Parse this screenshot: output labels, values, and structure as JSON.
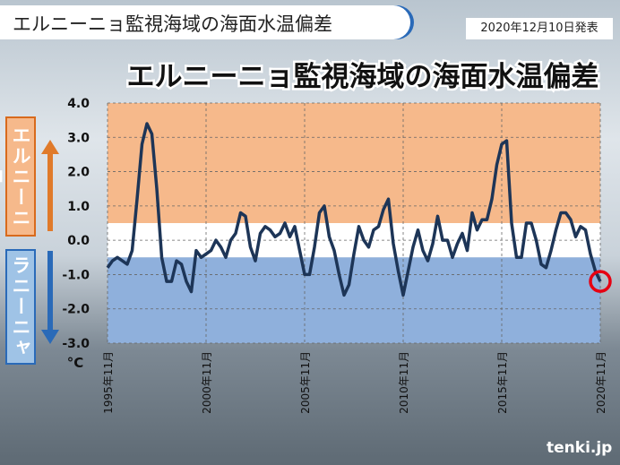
{
  "header": {
    "title": "エルニーニョ監視海域の海面水温偏差",
    "date": "2020年12月10日発表"
  },
  "side_labels": {
    "el_nino": "エルニーニョ",
    "la_nina": "ラニーニャ"
  },
  "logo": "tenki.jp",
  "chart_data": {
    "type": "line",
    "title": "エルニーニョ監視海域の海面水温偏差",
    "y_unit": "°C",
    "xlim": [
      "1995-11",
      "2020-11"
    ],
    "xticks": [
      {
        "value": "1995-11",
        "label": "1995年11月"
      },
      {
        "value": "2000-11",
        "label": "2000年11月"
      },
      {
        "value": "2005-11",
        "label": "2005年11月"
      },
      {
        "value": "2010-11",
        "label": "2010年11月"
      },
      {
        "value": "2015-11",
        "label": "2015年11月"
      },
      {
        "value": "2020-11",
        "label": "2020年11月"
      }
    ],
    "ylim": [
      -3,
      4
    ],
    "yticks": [
      {
        "value": 4,
        "label": "4.0"
      },
      {
        "value": 3,
        "label": "3.0"
      },
      {
        "value": 2,
        "label": "2.0"
      },
      {
        "value": 1,
        "label": "1.0"
      },
      {
        "value": 0,
        "label": "0.0"
      },
      {
        "value": -1,
        "label": "-1.0"
      },
      {
        "value": -2,
        "label": "-2.0"
      },
      {
        "value": -3,
        "label": "-3.0"
      }
    ],
    "grid": true,
    "bands": [
      {
        "from": 0.5,
        "to": 4,
        "color": "#f6b98b"
      },
      {
        "from": -0.5,
        "to": 0.5,
        "color": "#ffffff"
      },
      {
        "from": -3,
        "to": -0.5,
        "color": "#8fb0dc"
      }
    ],
    "x": [
      "1995-11",
      "1996-02",
      "1996-05",
      "1996-08",
      "1996-11",
      "1997-02",
      "1997-05",
      "1997-08",
      "1997-11",
      "1998-02",
      "1998-05",
      "1998-08",
      "1998-11",
      "1999-02",
      "1999-05",
      "1999-08",
      "1999-11",
      "2000-02",
      "2000-05",
      "2000-08",
      "2000-11",
      "2001-02",
      "2001-05",
      "2001-08",
      "2001-11",
      "2002-02",
      "2002-05",
      "2002-08",
      "2002-11",
      "2003-02",
      "2003-05",
      "2003-08",
      "2003-11",
      "2004-02",
      "2004-05",
      "2004-08",
      "2004-11",
      "2005-02",
      "2005-05",
      "2005-08",
      "2005-11",
      "2006-02",
      "2006-05",
      "2006-08",
      "2006-11",
      "2007-02",
      "2007-05",
      "2007-08",
      "2007-11",
      "2008-02",
      "2008-05",
      "2008-08",
      "2008-11",
      "2009-02",
      "2009-05",
      "2009-08",
      "2009-11",
      "2010-02",
      "2010-05",
      "2010-08",
      "2010-11",
      "2011-02",
      "2011-05",
      "2011-08",
      "2011-11",
      "2012-02",
      "2012-05",
      "2012-08",
      "2012-11",
      "2013-02",
      "2013-05",
      "2013-08",
      "2013-11",
      "2014-02",
      "2014-05",
      "2014-08",
      "2014-11",
      "2015-02",
      "2015-05",
      "2015-08",
      "2015-11",
      "2016-02",
      "2016-05",
      "2016-08",
      "2016-11",
      "2017-02",
      "2017-05",
      "2017-08",
      "2017-11",
      "2018-02",
      "2018-05",
      "2018-08",
      "2018-11",
      "2019-02",
      "2019-05",
      "2019-08",
      "2019-11",
      "2020-02",
      "2020-05",
      "2020-08",
      "2020-11"
    ],
    "series": [
      {
        "color": "#1d3557",
        "values": [
          -0.8,
          -0.6,
          -0.5,
          -0.6,
          -0.7,
          -0.3,
          1.2,
          2.8,
          3.4,
          3.1,
          1.5,
          -0.5,
          -1.2,
          -1.2,
          -0.6,
          -0.7,
          -1.2,
          -1.5,
          -0.3,
          -0.5,
          -0.4,
          -0.3,
          0.0,
          -0.2,
          -0.5,
          0.0,
          0.2,
          0.8,
          0.7,
          -0.2,
          -0.6,
          0.2,
          0.4,
          0.3,
          0.1,
          0.2,
          0.5,
          0.1,
          0.4,
          -0.3,
          -1.0,
          -1.0,
          -0.2,
          0.8,
          1.0,
          0.1,
          -0.3,
          -1.0,
          -1.6,
          -1.3,
          -0.4,
          0.4,
          0.0,
          -0.2,
          0.3,
          0.4,
          0.9,
          1.2,
          -0.1,
          -0.9,
          -1.6,
          -0.9,
          -0.2,
          0.3,
          -0.3,
          -0.6,
          -0.1,
          0.7,
          0.0,
          0.0,
          -0.5,
          -0.1,
          0.2,
          -0.3,
          0.8,
          0.3,
          0.6,
          0.6,
          1.2,
          2.2,
          2.8,
          2.9,
          0.5,
          -0.5,
          -0.5,
          0.5,
          0.5,
          0.0,
          -0.7,
          -0.8,
          -0.3,
          0.3,
          0.8,
          0.8,
          0.6,
          0.1,
          0.4,
          0.3,
          -0.4,
          -0.9,
          -1.2
        ]
      }
    ]
  }
}
